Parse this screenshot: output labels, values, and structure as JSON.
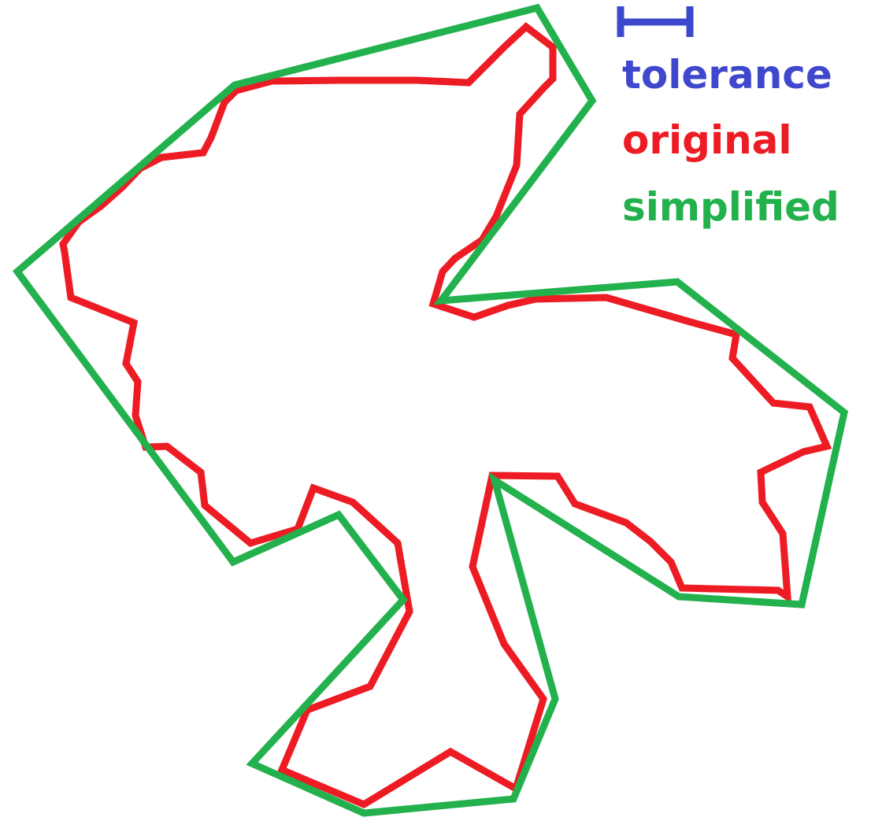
{
  "legend": {
    "tolerance_label": "tolerance",
    "original_label": "original",
    "simplified_label": "simplified"
  },
  "colors": {
    "tolerance": "#3f48cc",
    "original": "#ed1c24",
    "simplified": "#22b14c",
    "background": "#ffffff"
  }
}
